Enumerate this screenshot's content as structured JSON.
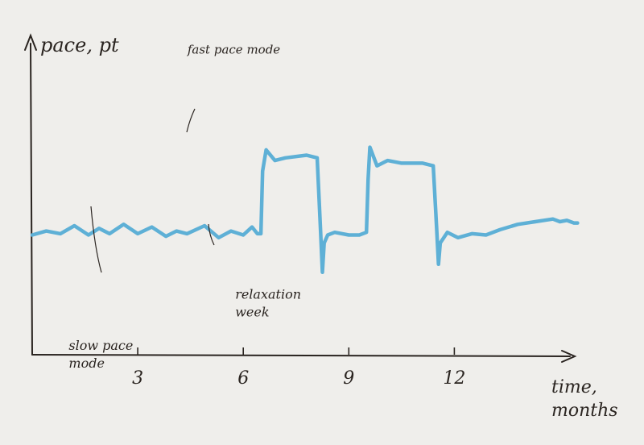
{
  "chart_data": {
    "type": "line",
    "ylabel": "pace, pt",
    "xlabel_line1": "time,",
    "xlabel_line2": "months",
    "xticks": [
      3,
      6,
      9,
      12
    ],
    "xlim": [
      0,
      15.5
    ],
    "ylim": [
      0,
      100
    ],
    "grid": false,
    "legend": "none",
    "series_color": "#5eb0d6",
    "series": [
      {
        "x": [
          0,
          0.4,
          0.8,
          1.2,
          1.6,
          1.9,
          2.2,
          2.6,
          3.0,
          3.4,
          3.8,
          4.1,
          4.4,
          4.9,
          5.3,
          5.65,
          6.0,
          6.25,
          6.4,
          6.5,
          6.55,
          6.65,
          6.9,
          7.2,
          7.8,
          8.1,
          8.2,
          8.25,
          8.3,
          8.4,
          8.6,
          9.0,
          9.3,
          9.5,
          9.55,
          9.6,
          9.8,
          10.1,
          10.5,
          11.1,
          11.4,
          11.5,
          11.55,
          11.6,
          11.8,
          12.1,
          12.5,
          12.9,
          13.3,
          13.8,
          14.3,
          14.8,
          15.0,
          15.2,
          15.4,
          15.5
        ],
        "y": [
          45,
          46.5,
          45.5,
          48.5,
          45,
          47.5,
          45.5,
          49,
          45.5,
          48,
          44.5,
          46.5,
          45.5,
          48.5,
          44,
          46.5,
          45,
          48,
          45.5,
          45.5,
          69,
          77,
          73,
          74,
          75,
          74,
          46,
          31,
          42,
          45,
          46,
          45,
          45,
          46,
          66,
          78,
          71,
          73,
          72,
          72,
          71,
          47,
          34,
          42,
          46,
          44,
          45.5,
          45,
          47,
          49,
          50,
          51,
          50,
          50.5,
          49.5,
          49.5
        ]
      }
    ],
    "annotations": [
      {
        "lines": [
          "fast pace mode"
        ],
        "x": 5.1,
        "y": 75
      },
      {
        "lines": [
          "relaxation",
          "week"
        ],
        "x": 6.0,
        "y": 32
      },
      {
        "lines": [
          "slow pace",
          "mode"
        ],
        "x": 2.0,
        "y": 46
      }
    ]
  }
}
